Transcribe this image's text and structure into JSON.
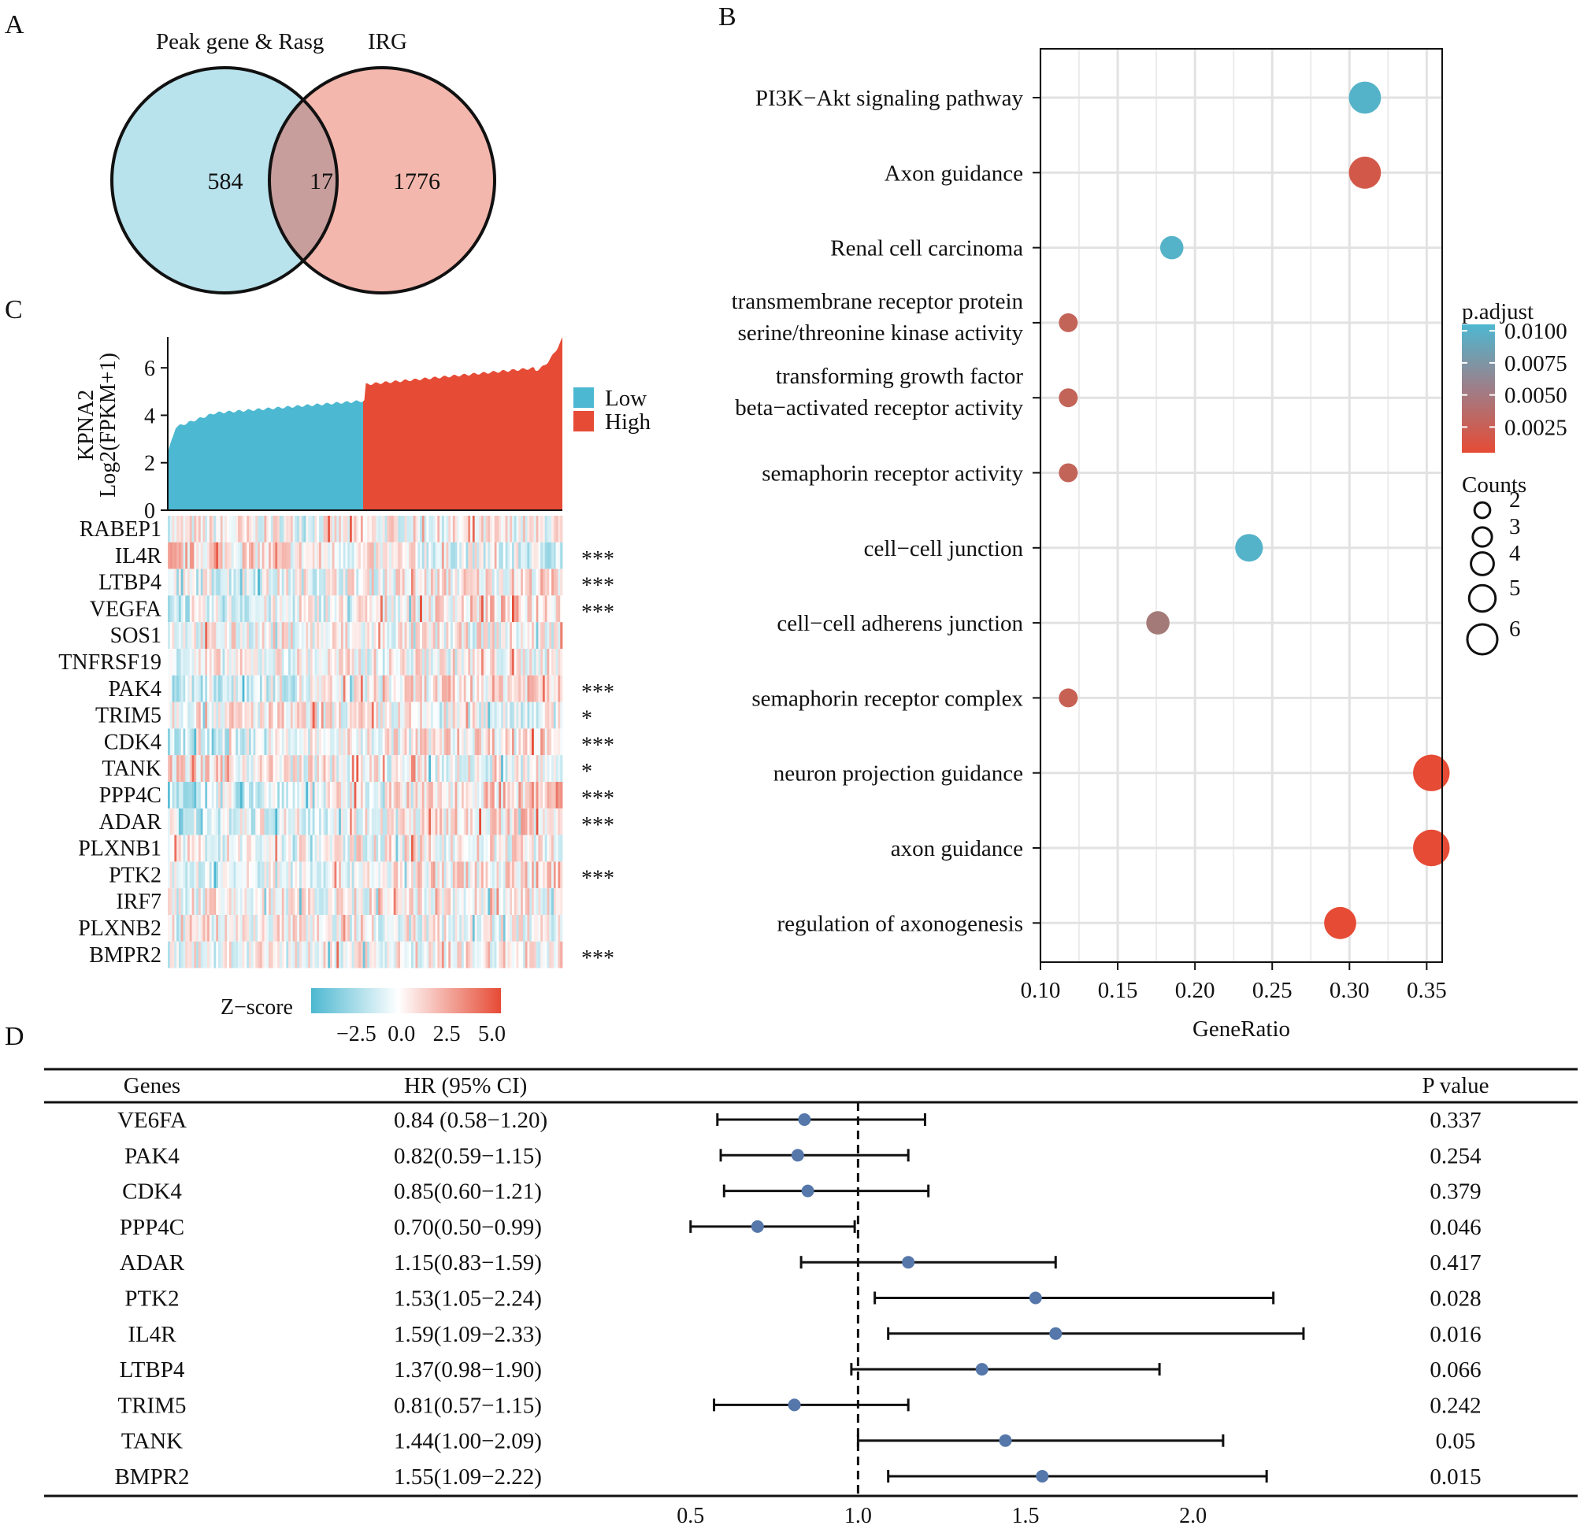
{
  "panels": {
    "a": {
      "letter": "A"
    },
    "b": {
      "letter": "B"
    },
    "c": {
      "letter": "C"
    },
    "d": {
      "letter": "D"
    }
  },
  "chart_data": [
    {
      "type": "venn",
      "sets": [
        "Peak gene & Rasg",
        "IRG"
      ],
      "left_only": "584",
      "intersection": "17",
      "right_only": "1776",
      "colors": {
        "left": "#b8e2ec",
        "right": "#f4b7ad",
        "overlap": "#c89e9c",
        "stroke": "#111111"
      }
    },
    {
      "type": "scatter",
      "title": "",
      "xlabel": "GeneRatio",
      "xlim": [
        0.1,
        0.36
      ],
      "xticks": [
        "0.10",
        "0.15",
        "0.20",
        "0.25",
        "0.30",
        "0.35"
      ],
      "terms": [
        {
          "label": [
            "PI3K−Akt signaling pathway"
          ],
          "gene_ratio": 0.31,
          "p_adjust": 0.01,
          "count": 5
        },
        {
          "label": [
            "Axon guidance"
          ],
          "gene_ratio": 0.31,
          "p_adjust": 0.0018,
          "count": 5
        },
        {
          "label": [
            "Renal cell carcinoma"
          ],
          "gene_ratio": 0.185,
          "p_adjust": 0.01,
          "count": 3
        },
        {
          "label": [
            "transmembrane receptor protein",
            "serine/threonine kinase activity"
          ],
          "gene_ratio": 0.118,
          "p_adjust": 0.0028,
          "count": 2
        },
        {
          "label": [
            "transforming growth factor",
            "beta−activated receptor activity"
          ],
          "gene_ratio": 0.118,
          "p_adjust": 0.0028,
          "count": 2
        },
        {
          "label": [
            "semaphorin receptor activity"
          ],
          "gene_ratio": 0.118,
          "p_adjust": 0.0028,
          "count": 2
        },
        {
          "label": [
            "cell−cell junction"
          ],
          "gene_ratio": 0.235,
          "p_adjust": 0.01,
          "count": 4
        },
        {
          "label": [
            "cell−cell adherens junction"
          ],
          "gene_ratio": 0.176,
          "p_adjust": 0.0048,
          "count": 3
        },
        {
          "label": [
            "semaphorin receptor complex"
          ],
          "gene_ratio": 0.118,
          "p_adjust": 0.0025,
          "count": 2
        },
        {
          "label": [
            "neuron projection guidance"
          ],
          "gene_ratio": 0.353,
          "p_adjust": 0.0005,
          "count": 6
        },
        {
          "label": [
            "axon guidance"
          ],
          "gene_ratio": 0.353,
          "p_adjust": 0.0005,
          "count": 6
        },
        {
          "label": [
            "regulation of axonogenesis"
          ],
          "gene_ratio": 0.294,
          "p_adjust": 0.0005,
          "count": 5
        }
      ],
      "color_legend": {
        "title": "p.adjust",
        "range": [
          0.0005,
          0.0105
        ],
        "ticks": [
          {
            "value": 0.01,
            "label": "0.0100"
          },
          {
            "value": 0.0075,
            "label": "0.0075"
          },
          {
            "value": 0.005,
            "label": "0.0050"
          },
          {
            "value": 0.0025,
            "label": "0.0025"
          }
        ],
        "low_color": "#e64b35",
        "high_color": "#4db8d1"
      },
      "size_legend": {
        "title": "Counts",
        "values": [
          "2",
          "3",
          "4",
          "5",
          "6"
        ]
      }
    },
    {
      "type": "heatmap",
      "bar_ylabel": [
        "KPNA2",
        "Log2(FPKM+1)"
      ],
      "bar_yticks": [
        "0",
        "2",
        "4",
        "6"
      ],
      "bar_ylim": [
        0,
        7.3
      ],
      "groups": [
        {
          "name": "Low",
          "color": "#4db8d1"
        },
        {
          "name": "High",
          "color": "#e64b35"
        }
      ],
      "rows": [
        "RABEP1",
        "IL4R",
        "LTBP4",
        "VEGFA",
        "SOS1",
        "TNFRSF19",
        "PAK4",
        "TRIM5",
        "CDK4",
        "TANK",
        "PPP4C",
        "ADAR",
        "PLXNB1",
        "PTK2",
        "IRF7",
        "PLXNB2",
        "BMPR2"
      ],
      "significance": [
        "",
        "***",
        "***",
        "***",
        "",
        "",
        "***",
        "*",
        "***",
        "*",
        "***",
        "***",
        "",
        "***",
        "",
        "",
        "***"
      ],
      "row_bias": [
        0,
        -0.6,
        0.4,
        0.7,
        0,
        0.1,
        0.7,
        -0.3,
        0.7,
        -0.3,
        0.8,
        0.5,
        0.1,
        0.5,
        0,
        -0.1,
        0.2
      ],
      "zscore_legend": {
        "title": "Z−score",
        "ticks": [
          "−2.5",
          "0.0",
          "2.5",
          "5.0"
        ],
        "range": [
          -5.0,
          5.5
        ]
      }
    },
    {
      "type": "table",
      "subtype": "forest",
      "columns": [
        "Genes",
        "HR (95% CI)",
        "P value"
      ],
      "xlim": [
        0.35,
        2.65
      ],
      "xticks": [
        "0.5",
        "1.0",
        "1.5",
        "2.0"
      ],
      "reference": 1.0,
      "rows": [
        {
          "gene": "VE6FA",
          "ci_text": "0.84 (0.58−1.20)",
          "hr": 0.84,
          "low": 0.58,
          "high": 1.2,
          "p": "0.337"
        },
        {
          "gene": "PAK4",
          "ci_text": "0.82(0.59−1.15)",
          "hr": 0.82,
          "low": 0.59,
          "high": 1.15,
          "p": "0.254"
        },
        {
          "gene": "CDK4",
          "ci_text": "0.85(0.60−1.21)",
          "hr": 0.85,
          "low": 0.6,
          "high": 1.21,
          "p": "0.379"
        },
        {
          "gene": "PPP4C",
          "ci_text": "0.70(0.50−0.99)",
          "hr": 0.7,
          "low": 0.5,
          "high": 0.99,
          "p": "0.046"
        },
        {
          "gene": "ADAR",
          "ci_text": "1.15(0.83−1.59)",
          "hr": 1.15,
          "low": 0.83,
          "high": 1.59,
          "p": "0.417"
        },
        {
          "gene": "PTK2",
          "ci_text": "1.53(1.05−2.24)",
          "hr": 1.53,
          "low": 1.05,
          "high": 2.24,
          "p": "0.028"
        },
        {
          "gene": "IL4R",
          "ci_text": "1.59(1.09−2.33)",
          "hr": 1.59,
          "low": 1.09,
          "high": 2.33,
          "p": "0.016"
        },
        {
          "gene": "LTBP4",
          "ci_text": "1.37(0.98−1.90)",
          "hr": 1.37,
          "low": 0.98,
          "high": 1.9,
          "p": "0.066"
        },
        {
          "gene": "TRIM5",
          "ci_text": "0.81(0.57−1.15)",
          "hr": 0.81,
          "low": 0.57,
          "high": 1.15,
          "p": "0.242"
        },
        {
          "gene": "TANK",
          "ci_text": "1.44(1.00−2.09)",
          "hr": 1.44,
          "low": 1.0,
          "high": 2.09,
          "p": "0.05"
        },
        {
          "gene": "BMPR2",
          "ci_text": "1.55(1.09−2.22)",
          "hr": 1.55,
          "low": 1.09,
          "high": 2.22,
          "p": "0.015"
        }
      ],
      "point_color": "#5577aa"
    }
  ]
}
